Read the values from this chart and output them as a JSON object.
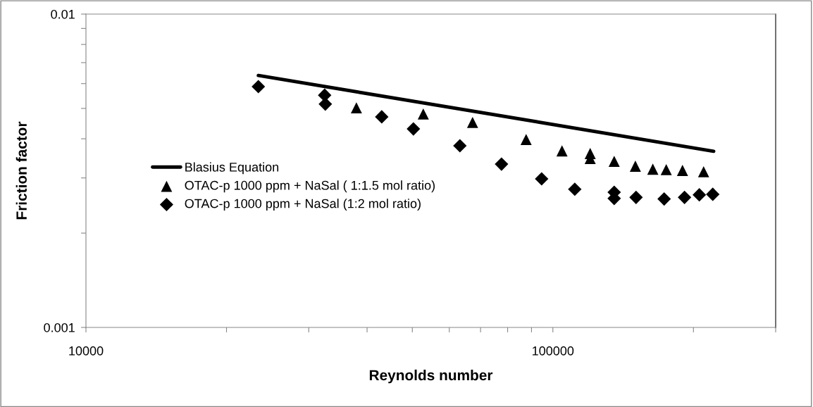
{
  "chart_data": {
    "type": "scatter",
    "xlabel": "Reynolds number",
    "ylabel": "Friction factor",
    "log": "xy",
    "xlim": [
      10000,
      300000
    ],
    "ylim": [
      0.001,
      0.01
    ],
    "xticks": [
      10000,
      {
        "value": 20000,
        "label": null
      },
      {
        "value": 30000,
        "label": null
      },
      {
        "value": 40000,
        "label": null
      },
      {
        "value": 50000,
        "label": null
      },
      {
        "value": 60000,
        "label": null
      },
      {
        "value": 70000,
        "label": null
      },
      {
        "value": 80000,
        "label": null
      },
      {
        "value": 90000,
        "label": null
      },
      100000,
      {
        "value": 200000,
        "label": null
      },
      {
        "value": 300000,
        "label": null
      }
    ],
    "yticks": [
      0.001,
      {
        "value": 0.002,
        "label": null
      },
      {
        "value": 0.003,
        "label": null
      },
      {
        "value": 0.004,
        "label": null
      },
      {
        "value": 0.005,
        "label": null
      },
      {
        "value": 0.006,
        "label": null
      },
      {
        "value": 0.007,
        "label": null
      },
      {
        "value": 0.008,
        "label": null
      },
      {
        "value": 0.009,
        "label": null
      },
      0.01
    ],
    "grid": false,
    "legend": "left",
    "series": [
      {
        "name": "Blasius Equation",
        "type": "line",
        "color": "#000000",
        "marker": "none",
        "line_style": "solid",
        "x": [
          23400,
          221000
        ],
        "values": [
          0.00637,
          0.00365
        ]
      },
      {
        "name": "OTAC-p 1000 ppm + NaSal ( 1:1.5 mol ratio)",
        "color": "#000000",
        "marker": "triangle",
        "x": [
          37950,
          52780,
          67300,
          87640,
          104600,
          120200,
          120200,
          135300,
          150200,
          163700,
          174900,
          189500,
          210300
        ],
        "values": [
          0.00502,
          0.0048,
          0.00451,
          0.00398,
          0.00366,
          0.00359,
          0.00346,
          0.00339,
          0.00327,
          0.0032,
          0.00319,
          0.00317,
          0.00314
        ]
      },
      {
        "name": "OTAC-p 1000 ppm + NaSal (1:2 mol ratio)",
        "color": "#000000",
        "marker": "diamond",
        "x": [
          23400,
          32450,
          32560,
          43000,
          50270,
          63220,
          77620,
          94600,
          111400,
          135300,
          135300,
          150700,
          173100,
          191400,
          205900,
          220000
        ],
        "values": [
          0.00587,
          0.00551,
          0.00516,
          0.0047,
          0.0043,
          0.0038,
          0.00332,
          0.00298,
          0.00276,
          0.0027,
          0.00258,
          0.0026,
          0.00257,
          0.0026,
          0.00265,
          0.00266
        ]
      }
    ]
  }
}
